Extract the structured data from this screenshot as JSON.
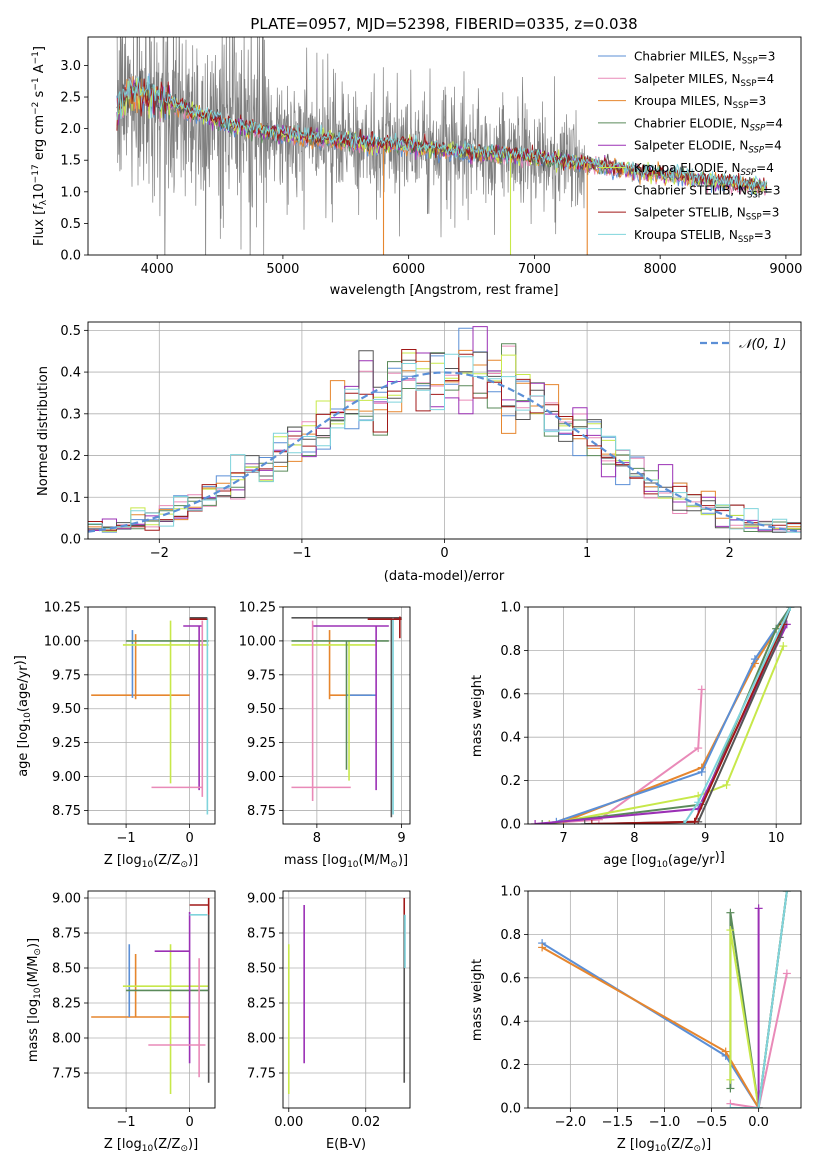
{
  "title": "PLATE=0957, MJD=52398, FIBERID=0335, z=0.038",
  "colors": {
    "data": "#808080",
    "chabrier_miles": "#5b8fd6",
    "salpeter_miles": "#e98ab8",
    "kroupa_miles": "#e6862e",
    "chabrier_elodie": "#5a8a5a",
    "salpeter_elodie": "#9b30b5",
    "kroupa_elodie": "#c7e84a",
    "chabrier_stelib": "#555555",
    "salpeter_stelib": "#a01818",
    "kroupa_stelib": "#7fd4dc",
    "normal": "#5b8fd6"
  },
  "legend": [
    {
      "label": "Chabrier MILES, N",
      "sub": "SSP",
      "suffix": "=3",
      "color": "#5b8fd6"
    },
    {
      "label": "Salpeter MILES, N",
      "sub": "SSP",
      "suffix": "=4",
      "color": "#e98ab8"
    },
    {
      "label": "Kroupa MILES, N",
      "sub": "SSP",
      "suffix": "=3",
      "color": "#e6862e"
    },
    {
      "label": "Chabrier ELODIE, N",
      "sub": "SSP",
      "suffix": "=4",
      "color": "#5a8a5a"
    },
    {
      "label": "Salpeter ELODIE, N",
      "sub": "SSP",
      "suffix": "=4",
      "color": "#9b30b5"
    },
    {
      "label": "Kroupa ELODIE, N",
      "sub": "SSP",
      "suffix": "=4",
      "color": "#c7e84a"
    },
    {
      "label": "Chabrier STELIB, N",
      "sub": "SSP",
      "suffix": "=3",
      "color": "#555555"
    },
    {
      "label": "Salpeter STELIB, N",
      "sub": "SSP",
      "suffix": "=3",
      "color": "#a01818"
    },
    {
      "label": "Kroupa STELIB, N",
      "sub": "SSP",
      "suffix": "=3",
      "color": "#7fd4dc"
    }
  ],
  "chart_data": [
    {
      "type": "line",
      "id": "spectrum",
      "xlabel": "wavelength [Angstrom, rest frame]",
      "ylabel_parts": [
        "Flux [",
        "f",
        "λ",
        "10",
        "−17",
        " erg cm",
        "−2",
        " s",
        "−1",
        " A",
        "−1",
        "]"
      ],
      "xlim": [
        3450,
        9120
      ],
      "ylim": [
        0,
        3.45
      ],
      "xticks": [
        4000,
        5000,
        6000,
        7000,
        8000,
        9000
      ],
      "yticks": [
        0.0,
        0.5,
        1.0,
        1.5,
        2.0,
        2.5,
        3.0
      ],
      "ytick_labels": [
        "0.0",
        "0.5",
        "1.0",
        "1.5",
        "2.0",
        "2.5",
        "3.0"
      ],
      "data_range": [
        3680,
        8850
      ],
      "model_range": [
        3680,
        8850
      ],
      "continuum": [
        [
          3680,
          2.25
        ],
        [
          3780,
          2.6
        ],
        [
          3900,
          2.55
        ],
        [
          4050,
          2.45
        ],
        [
          4300,
          2.25
        ],
        [
          4600,
          2.05
        ],
        [
          5000,
          1.9
        ],
        [
          5500,
          1.8
        ],
        [
          6000,
          1.72
        ],
        [
          6500,
          1.62
        ],
        [
          7000,
          1.55
        ],
        [
          7500,
          1.42
        ],
        [
          8000,
          1.28
        ],
        [
          8500,
          1.15
        ],
        [
          8850,
          1.08
        ]
      ]
    },
    {
      "type": "line",
      "id": "residual-histogram",
      "xlabel": "(data-model)/error",
      "ylabel": "Normed distribution",
      "xlim": [
        -2.5,
        2.5
      ],
      "ylim": [
        0,
        0.52
      ],
      "xticks": [
        -2,
        -1,
        0,
        1,
        2
      ],
      "xtick_labels": [
        "−2",
        "−1",
        "0",
        "1",
        "2"
      ],
      "yticks": [
        0.0,
        0.1,
        0.2,
        0.3,
        0.4,
        0.5
      ],
      "ytick_labels": [
        "0.0",
        "0.1",
        "0.2",
        "0.3",
        "0.4",
        "0.5"
      ],
      "normal_label": "𝒩(0, 1)",
      "bin_width": 0.1
    },
    {
      "type": "scatter",
      "id": "age-vs-Z",
      "xlabel": "Z [log",
      "ylabel": "age  [log",
      "xlim": [
        -1.6,
        0.4
      ],
      "ylim": [
        8.65,
        10.25
      ],
      "xticks": [
        -1,
        0
      ],
      "xtick_labels": [
        "−1",
        "0"
      ],
      "yticks": [
        8.75,
        9.0,
        9.25,
        9.5,
        9.75,
        10.0,
        10.25
      ],
      "ytick_labels": [
        "8.75",
        "9.00",
        "9.25",
        "9.50",
        "9.75",
        "10.00",
        "10.25"
      ],
      "segments": [
        {
          "c": "#e6862e",
          "x": [
            -1.55,
            0.0
          ],
          "y": [
            9.6,
            9.6
          ]
        },
        {
          "c": "#e6862e",
          "x": [
            -0.85,
            -0.85
          ],
          "y": [
            9.57,
            10.05
          ]
        },
        {
          "c": "#5b8fd6",
          "x": [
            -0.9,
            -0.9
          ],
          "y": [
            9.58,
            10.08
          ]
        },
        {
          "c": "#c7e84a",
          "x": [
            -1.05,
            0.3
          ],
          "y": [
            9.97,
            9.97
          ]
        },
        {
          "c": "#c7e84a",
          "x": [
            -0.3,
            -0.3
          ],
          "y": [
            8.95,
            10.15
          ]
        },
        {
          "c": "#5a8a5a",
          "x": [
            -1.0,
            0.3
          ],
          "y": [
            10.0,
            10.0
          ]
        },
        {
          "c": "#9b30b5",
          "x": [
            -0.1,
            0.2
          ],
          "y": [
            10.11,
            10.11
          ]
        },
        {
          "c": "#9b30b5",
          "x": [
            0.15,
            0.15
          ],
          "y": [
            8.9,
            10.11
          ]
        },
        {
          "c": "#e98ab8",
          "x": [
            -0.6,
            0.2
          ],
          "y": [
            8.92,
            8.92
          ]
        },
        {
          "c": "#e98ab8",
          "x": [
            0.2,
            0.2
          ],
          "y": [
            8.85,
            10.15
          ]
        },
        {
          "c": "#555555",
          "x": [
            0.0,
            0.28
          ],
          "y": [
            10.17,
            10.17
          ]
        },
        {
          "c": "#7fd4dc",
          "x": [
            0.28,
            0.28
          ],
          "y": [
            8.72,
            10.17
          ]
        },
        {
          "c": "#a01818",
          "x": [
            0.0,
            0.28
          ],
          "y": [
            10.16,
            10.16
          ]
        }
      ]
    },
    {
      "type": "scatter",
      "id": "age-vs-mass",
      "xlabel": "mass [log",
      "xlim": [
        7.6,
        9.1
      ],
      "ylim": [
        8.65,
        10.25
      ],
      "xticks": [
        8,
        9
      ],
      "xtick_labels": [
        "8",
        "9"
      ],
      "yticks": [
        8.75,
        9.0,
        9.25,
        9.5,
        9.75,
        10.0,
        10.25
      ],
      "ytick_labels": [
        "8.75",
        "9.00",
        "9.25",
        "9.50",
        "9.75",
        "10.00",
        "10.25"
      ],
      "segments": [
        {
          "c": "#e6862e",
          "x": [
            8.15,
            8.65
          ],
          "y": [
            9.6,
            9.6
          ]
        },
        {
          "c": "#e6862e",
          "x": [
            8.15,
            8.15
          ],
          "y": [
            9.57,
            10.08
          ]
        },
        {
          "c": "#5b8fd6",
          "x": [
            8.35,
            8.7
          ],
          "y": [
            9.6,
            9.6
          ]
        },
        {
          "c": "#c7e84a",
          "x": [
            7.7,
            8.7
          ],
          "y": [
            9.97,
            9.97
          ]
        },
        {
          "c": "#c7e84a",
          "x": [
            8.38,
            8.38
          ],
          "y": [
            8.97,
            10.0
          ]
        },
        {
          "c": "#5a8a5a",
          "x": [
            7.7,
            8.85
          ],
          "y": [
            10.0,
            10.0
          ]
        },
        {
          "c": "#5a8a5a",
          "x": [
            8.35,
            8.35
          ],
          "y": [
            9.05,
            10.0
          ]
        },
        {
          "c": "#9b30b5",
          "x": [
            7.95,
            8.85
          ],
          "y": [
            10.11,
            10.11
          ]
        },
        {
          "c": "#9b30b5",
          "x": [
            8.7,
            8.7
          ],
          "y": [
            8.9,
            10.11
          ]
        },
        {
          "c": "#e98ab8",
          "x": [
            7.7,
            8.4
          ],
          "y": [
            8.92,
            8.92
          ]
        },
        {
          "c": "#e98ab8",
          "x": [
            7.95,
            7.95
          ],
          "y": [
            8.82,
            10.15
          ]
        },
        {
          "c": "#555555",
          "x": [
            7.7,
            9.0
          ],
          "y": [
            10.17,
            10.17
          ]
        },
        {
          "c": "#555555",
          "x": [
            8.88,
            8.88
          ],
          "y": [
            8.7,
            10.17
          ]
        },
        {
          "c": "#7fd4dc",
          "x": [
            8.9,
            8.9
          ],
          "y": [
            8.72,
            10.17
          ]
        },
        {
          "c": "#a01818",
          "x": [
            8.6,
            9.0
          ],
          "y": [
            10.16,
            10.16
          ]
        },
        {
          "c": "#a01818",
          "x": [
            8.98,
            8.98
          ],
          "y": [
            10.02,
            10.18
          ]
        }
      ]
    },
    {
      "type": "line",
      "id": "mass-weight-vs-age",
      "xlabel": "age  [log",
      "ylabel": "mass weight",
      "xlim": [
        6.5,
        10.35
      ],
      "ylim": [
        0,
        1.0
      ],
      "xticks": [
        7,
        8,
        9,
        10
      ],
      "xtick_labels": [
        "7",
        "8",
        "9",
        "10"
      ],
      "yticks": [
        0.0,
        0.2,
        0.4,
        0.6,
        0.8,
        1.0
      ],
      "ytick_labels": [
        "0.0",
        "0.2",
        "0.4",
        "0.6",
        "0.8",
        "1.0"
      ],
      "series": [
        {
          "c": "#e98ab8",
          "x": [
            6.6,
            7.5,
            8.9,
            8.95
          ],
          "y": [
            0.0,
            0.02,
            0.35,
            0.62
          ]
        },
        {
          "c": "#e6862e",
          "x": [
            7.0,
            8.95,
            9.7,
            10.2
          ],
          "y": [
            0.01,
            0.26,
            0.74,
            1.0
          ]
        },
        {
          "c": "#5b8fd6",
          "x": [
            6.9,
            8.95,
            9.7,
            10.2
          ],
          "y": [
            0.01,
            0.24,
            0.76,
            1.0
          ]
        },
        {
          "c": "#c7e84a",
          "x": [
            6.8,
            8.9,
            9.3,
            10.1
          ],
          "y": [
            0.0,
            0.13,
            0.18,
            0.82
          ]
        },
        {
          "c": "#5a8a5a",
          "x": [
            6.7,
            8.95,
            10.0,
            10.2
          ],
          "y": [
            0.0,
            0.09,
            0.9,
            1.0
          ]
        },
        {
          "c": "#9b30b5",
          "x": [
            6.6,
            8.9,
            10.15
          ],
          "y": [
            0.0,
            0.07,
            0.92
          ]
        },
        {
          "c": "#555555",
          "x": [
            7.3,
            8.9,
            10.05,
            10.2
          ],
          "y": [
            0.0,
            0.01,
            0.86,
            1.0
          ]
        },
        {
          "c": "#a01818",
          "x": [
            7.4,
            8.85,
            10.1
          ],
          "y": [
            0.0,
            0.01,
            0.92
          ]
        },
        {
          "c": "#7fd4dc",
          "x": [
            8.7,
            8.9,
            10.2
          ],
          "y": [
            0.0,
            0.1,
            1.0
          ]
        }
      ]
    },
    {
      "type": "scatter",
      "id": "mass-vs-Z",
      "xlabel": "Z [log",
      "ylabel": "mass [log",
      "xlim": [
        -1.6,
        0.4
      ],
      "ylim": [
        7.5,
        9.05
      ],
      "xticks": [
        -1,
        0
      ],
      "xtick_labels": [
        "−1",
        "0"
      ],
      "yticks": [
        7.75,
        8.0,
        8.25,
        8.5,
        8.75,
        9.0
      ],
      "ytick_labels": [
        "7.75",
        "8.00",
        "8.25",
        "8.50",
        "8.75",
        "9.00"
      ],
      "segments": [
        {
          "c": "#e6862e",
          "x": [
            -1.55,
            0.0
          ],
          "y": [
            8.15,
            8.15
          ]
        },
        {
          "c": "#e6862e",
          "x": [
            -0.85,
            -0.85
          ],
          "y": [
            8.15,
            8.6
          ]
        },
        {
          "c": "#5b8fd6",
          "x": [
            -0.95,
            -0.95
          ],
          "y": [
            8.15,
            8.67
          ]
        },
        {
          "c": "#c7e84a",
          "x": [
            -1.05,
            0.3
          ],
          "y": [
            8.37,
            8.37
          ]
        },
        {
          "c": "#c7e84a",
          "x": [
            -0.3,
            -0.3
          ],
          "y": [
            7.6,
            8.67
          ]
        },
        {
          "c": "#5a8a5a",
          "x": [
            -1.0,
            0.3
          ],
          "y": [
            8.34,
            8.34
          ]
        },
        {
          "c": "#9b30b5",
          "x": [
            -0.55,
            0.0
          ],
          "y": [
            8.62,
            8.62
          ]
        },
        {
          "c": "#9b30b5",
          "x": [
            0.0,
            0.0
          ],
          "y": [
            7.82,
            8.9
          ]
        },
        {
          "c": "#e98ab8",
          "x": [
            -0.65,
            0.25
          ],
          "y": [
            7.95,
            7.95
          ]
        },
        {
          "c": "#e98ab8",
          "x": [
            0.15,
            0.15
          ],
          "y": [
            7.72,
            8.57
          ]
        },
        {
          "c": "#555555",
          "x": [
            0.3,
            0.3
          ],
          "y": [
            7.68,
            8.88
          ]
        },
        {
          "c": "#7fd4dc",
          "x": [
            0.0,
            0.28
          ],
          "y": [
            8.88,
            8.88
          ]
        },
        {
          "c": "#a01818",
          "x": [
            0.0,
            0.3
          ],
          "y": [
            8.95,
            8.95
          ]
        },
        {
          "c": "#a01818",
          "x": [
            0.3,
            0.3
          ],
          "y": [
            8.88,
            9.0
          ]
        }
      ]
    },
    {
      "type": "scatter",
      "id": "mass-vs-EBV",
      "xlabel": "E(B-V)",
      "xlim": [
        -0.0015,
        0.0315
      ],
      "ylim": [
        7.5,
        9.05
      ],
      "xticks": [
        0.0,
        0.02
      ],
      "xtick_labels": [
        "0.00",
        "0.02"
      ],
      "yticks": [
        7.75,
        8.0,
        8.25,
        8.5,
        8.75,
        9.0
      ],
      "ytick_labels": [
        "7.75",
        "8.00",
        "8.25",
        "8.50",
        "8.75",
        "9.00"
      ],
      "segments": [
        {
          "c": "#c7e84a",
          "x": [
            0.0,
            0.0
          ],
          "y": [
            7.6,
            8.67
          ]
        },
        {
          "c": "#9b30b5",
          "x": [
            0.004,
            0.004
          ],
          "y": [
            7.82,
            8.95
          ]
        },
        {
          "c": "#555555",
          "x": [
            0.03,
            0.03
          ],
          "y": [
            7.68,
            8.88
          ]
        },
        {
          "c": "#a01818",
          "x": [
            0.03,
            0.03
          ],
          "y": [
            8.88,
            9.0
          ]
        },
        {
          "c": "#7fd4dc",
          "x": [
            0.0302,
            0.0302
          ],
          "y": [
            8.5,
            8.88
          ]
        }
      ]
    },
    {
      "type": "line",
      "id": "mass-weight-vs-Z",
      "xlabel": "Z [log",
      "ylabel": "mass weight",
      "xlim": [
        -2.45,
        0.45
      ],
      "ylim": [
        0,
        1.0
      ],
      "xticks": [
        -2.0,
        -1.5,
        -1.0,
        -0.5,
        0.0
      ],
      "xtick_labels": [
        "−2.0",
        "−1.5",
        "−1.0",
        "−0.5",
        "0.0"
      ],
      "yticks": [
        0.0,
        0.2,
        0.4,
        0.6,
        0.8,
        1.0
      ],
      "ytick_labels": [
        "0.0",
        "0.2",
        "0.4",
        "0.6",
        "0.8",
        "1.0"
      ],
      "series": [
        {
          "c": "#5b8fd6",
          "x": [
            -2.3,
            -0.35,
            0.0,
            0.3
          ],
          "y": [
            0.76,
            0.24,
            0.0,
            1.0
          ]
        },
        {
          "c": "#e6862e",
          "x": [
            -2.3,
            -0.35,
            0.0,
            0.3
          ],
          "y": [
            0.74,
            0.26,
            0.0,
            1.0
          ]
        },
        {
          "c": "#e98ab8",
          "x": [
            -0.3,
            0.0,
            0.3
          ],
          "y": [
            0.02,
            0.0,
            0.62
          ]
        },
        {
          "c": "#5a8a5a",
          "x": [
            -0.3,
            -0.3,
            0.0,
            0.3
          ],
          "y": [
            0.09,
            0.9,
            0.0,
            1.0
          ]
        },
        {
          "c": "#c7e84a",
          "x": [
            -0.3,
            -0.3,
            0.0
          ],
          "y": [
            0.13,
            0.82,
            0.0
          ]
        },
        {
          "c": "#9b30b5",
          "x": [
            0.0,
            0.0
          ],
          "y": [
            0.0,
            0.92
          ]
        },
        {
          "c": "#7fd4dc",
          "x": [
            -0.3,
            0.0,
            0.3
          ],
          "y": [
            0.0,
            0.0,
            1.0
          ]
        }
      ]
    }
  ]
}
